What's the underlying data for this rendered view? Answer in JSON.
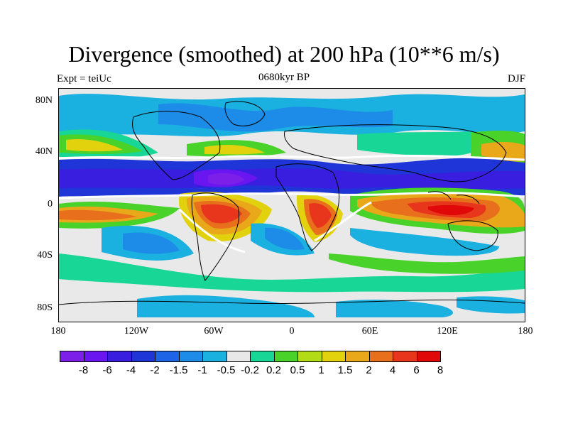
{
  "title": "Divergence (smoothed) at 200 hPa (10**6 m/s)",
  "subtitle_left": "Expt = teiUc",
  "subtitle_center": "0680kyr BP",
  "subtitle_right": "DJF",
  "lat_labels": [
    "80N",
    "40N",
    "0",
    "40S",
    "80S"
  ],
  "lon_labels": [
    "180",
    "120W",
    "60W",
    "0",
    "60E",
    "120E",
    "180"
  ],
  "legend_colors": [
    "#7c1fe8",
    "#6a16f0",
    "#3a1ee0",
    "#1f35d8",
    "#1e64e6",
    "#1d8be8",
    "#1ab0e0",
    "#e8e8e8",
    "#17d696",
    "#48d22a",
    "#b2dc16",
    "#e2d20e",
    "#e8a81a",
    "#e8701c",
    "#e8361c",
    "#e00808"
  ],
  "legend_labels": [
    "-8",
    "-6",
    "-4",
    "-2",
    "-1.5",
    "-1",
    "-0.5",
    "-0.2",
    "0.2",
    "0.5",
    "1",
    "1.5",
    "2",
    "4",
    "6",
    "8"
  ]
}
